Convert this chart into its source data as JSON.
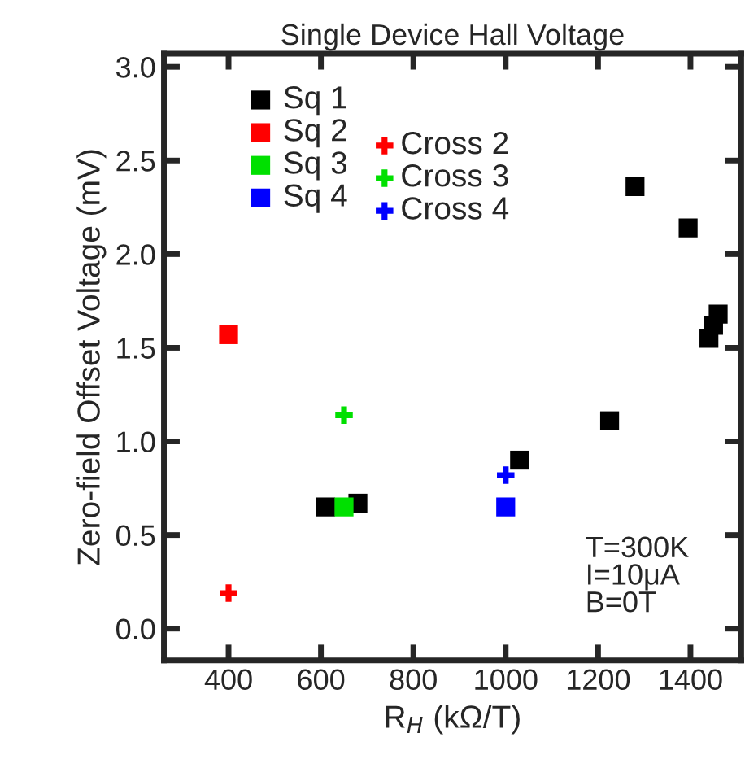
{
  "chart_data": {
    "type": "scatter",
    "title": "Single Device Hall Voltage",
    "xlabel": "R$_{H}$ (kΩ/T)",
    "ylabel": "Zero-field Offset Voltage (mV)",
    "xlim": [
      260,
      1510
    ],
    "xticks": [
      400,
      600,
      800,
      1000,
      1200,
      1400
    ],
    "ylim": [
      -0.17,
      3.07
    ],
    "yticks": [
      {
        "value": 0,
        "label": "0.0"
      },
      {
        "value": 0.5,
        "label": "0.5"
      },
      {
        "value": 1,
        "label": "1.0"
      },
      {
        "value": 1.5,
        "label": "1.5"
      },
      {
        "value": 2,
        "label": "2.0"
      },
      {
        "value": 2.5,
        "label": "2.5"
      },
      {
        "value": 3,
        "label": "3.0"
      }
    ],
    "legend": "top left",
    "grid": false,
    "annotations": [
      "T=300K\nI=10μA\nB=0T"
    ],
    "series": [
      {
        "name": "Sq 1",
        "color": "#000000",
        "marker": "square",
        "x": [
          610,
          680,
          1030,
          1225,
          1280,
          1395,
          1440,
          1450,
          1460
        ],
        "values": [
          0.65,
          0.67,
          0.9,
          1.11,
          2.36,
          2.14,
          1.55,
          1.62,
          1.68
        ]
      },
      {
        "name": "Sq 2",
        "color": "#ff0000",
        "marker": "square",
        "x": [
          400
        ],
        "values": [
          1.57
        ]
      },
      {
        "name": "Sq 3",
        "color": "#00e000",
        "marker": "square",
        "x": [
          650
        ],
        "values": [
          0.65
        ]
      },
      {
        "name": "Sq 4",
        "color": "#0000ff",
        "marker": "square",
        "x": [
          1000
        ],
        "values": [
          0.65
        ]
      },
      {
        "name": "Cross 2",
        "color": "#ff0000",
        "marker": "cross",
        "x": [
          400
        ],
        "values": [
          0.19
        ]
      },
      {
        "name": "Cross 3",
        "color": "#00e000",
        "marker": "cross",
        "x": [
          650
        ],
        "values": [
          1.14
        ]
      },
      {
        "name": "Cross 4",
        "color": "#0000ff",
        "marker": "cross",
        "x": [
          1000
        ],
        "values": [
          0.82
        ]
      }
    ]
  }
}
